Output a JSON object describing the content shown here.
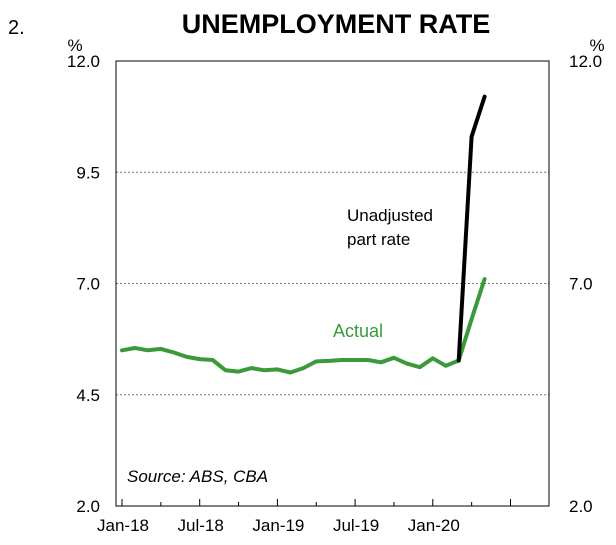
{
  "figure_number": "2.",
  "chart_data": {
    "type": "line",
    "title": "UNEMPLOYMENT RATE",
    "y_unit_left": "%",
    "y_unit_right": "%",
    "ylim": [
      2.0,
      12.0
    ],
    "yticks": [
      "2.0",
      "4.5",
      "7.0",
      "9.5",
      "12.0"
    ],
    "yticks_right": [
      "2.0",
      "7.0",
      "12.0"
    ],
    "grid": "horizontal dotted",
    "x_tick_labels": [
      {
        "label": "Jan-18",
        "index": 0
      },
      {
        "label": "Jul-18",
        "index": 6
      },
      {
        "label": "Jan-19",
        "index": 12
      },
      {
        "label": "Jul-19",
        "index": 18
      },
      {
        "label": "Jan-20",
        "index": 24
      }
    ],
    "x_months_total": 31,
    "series": [
      {
        "name": "Actual",
        "color": "#3a9a3a",
        "start_index": 0,
        "values": [
          5.5,
          5.55,
          5.5,
          5.53,
          5.45,
          5.35,
          5.3,
          5.28,
          5.05,
          5.02,
          5.1,
          5.05,
          5.07,
          5.0,
          5.1,
          5.25,
          5.26,
          5.28,
          5.28,
          5.28,
          5.23,
          5.33,
          5.2,
          5.12,
          5.32,
          5.15,
          5.27,
          6.2,
          7.1
        ]
      },
      {
        "name": "Unadjusted part rate",
        "color": "#000000",
        "start_index": 26,
        "values": [
          5.27,
          10.3,
          11.2
        ]
      }
    ],
    "annotations": [
      {
        "text_lines": [
          "Unadjusted",
          "part rate"
        ],
        "series": 1
      },
      {
        "text_lines": [
          "Actual"
        ],
        "series": 0
      }
    ],
    "source": "Source: ABS, CBA"
  }
}
